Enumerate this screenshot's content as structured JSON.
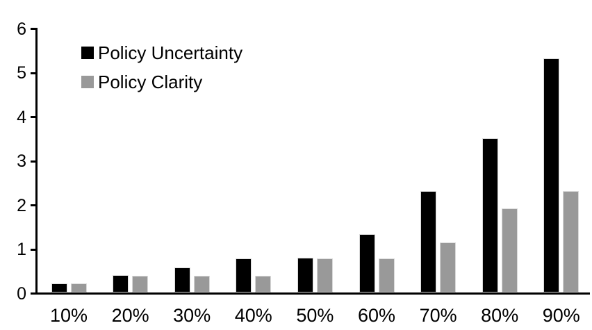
{
  "chart_data": {
    "type": "bar",
    "title": "",
    "xlabel": "",
    "ylabel": "",
    "categories": [
      "10%",
      "20%",
      "30%",
      "40%",
      "50%",
      "60%",
      "70%",
      "80%",
      "90%"
    ],
    "series": [
      {
        "name": "Policy Uncertainty",
        "color": "#000000",
        "values": [
          0.2,
          0.4,
          0.57,
          0.77,
          0.78,
          1.33,
          2.3,
          3.5,
          5.3
        ]
      },
      {
        "name": "Policy Clarity",
        "color": "#999999",
        "values": [
          0.2,
          0.38,
          0.38,
          0.38,
          0.77,
          0.77,
          1.13,
          1.9,
          2.3
        ]
      }
    ],
    "ylim": [
      0,
      6
    ],
    "yticks": [
      0,
      1,
      2,
      3,
      4,
      5,
      6
    ],
    "grid": false,
    "legend_position": "top-left",
    "colors": {
      "axis": "#000000",
      "bar_border": "#d9d9d9",
      "background": "#ffffff",
      "text": "#000000"
    }
  }
}
